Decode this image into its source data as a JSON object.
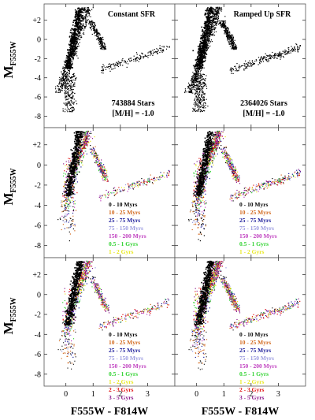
{
  "chart_data": {
    "type": "scatter",
    "layout": "3 rows x 2 columns, shared axes",
    "xlabel": "F555W - F814W",
    "ylabel_main": "M",
    "ylabel_sub": "F555W",
    "x_ticks": [
      "0",
      "1",
      "2",
      "3"
    ],
    "x_tick_values": [
      0,
      1,
      2,
      3
    ],
    "y_ticks": [
      "-8",
      "-6",
      "-4",
      "-2",
      "0",
      "+2"
    ],
    "y_tick_values": [
      -8,
      -6,
      -4,
      -2,
      0,
      2
    ],
    "xlim": [
      -0.8,
      4.0
    ],
    "ylim": [
      3.7,
      -9.2
    ],
    "y_inverted": true,
    "column_titles": [
      "Constant SFR",
      "Ramped Up SFR"
    ],
    "star_counts": [
      "743884 Stars",
      "2364026 Stars"
    ],
    "metallicity": "[M/H] = -1.0",
    "legend": [
      {
        "label": "0 - 10 Myrs",
        "color": "#000000"
      },
      {
        "label": "10 - 25 Myrs",
        "color": "#d2691e"
      },
      {
        "label": "25 - 75 Myrs",
        "color": "#1a1a99"
      },
      {
        "label": "75 - 150 Myrs",
        "color": "#9a9ae0"
      },
      {
        "label": "150 - 200 Myrs",
        "color": "#c040c0"
      },
      {
        "label": "0.5 - 1 Gyrs",
        "color": "#2fd22f"
      },
      {
        "label": "1 - 2 Gyrs",
        "color": "#e8e820"
      },
      {
        "label": "2 - 3 Gyrs",
        "color": "#e01010"
      },
      {
        "label": "3 - 5 Gyrs",
        "color": "#8b1a8b"
      }
    ]
  }
}
